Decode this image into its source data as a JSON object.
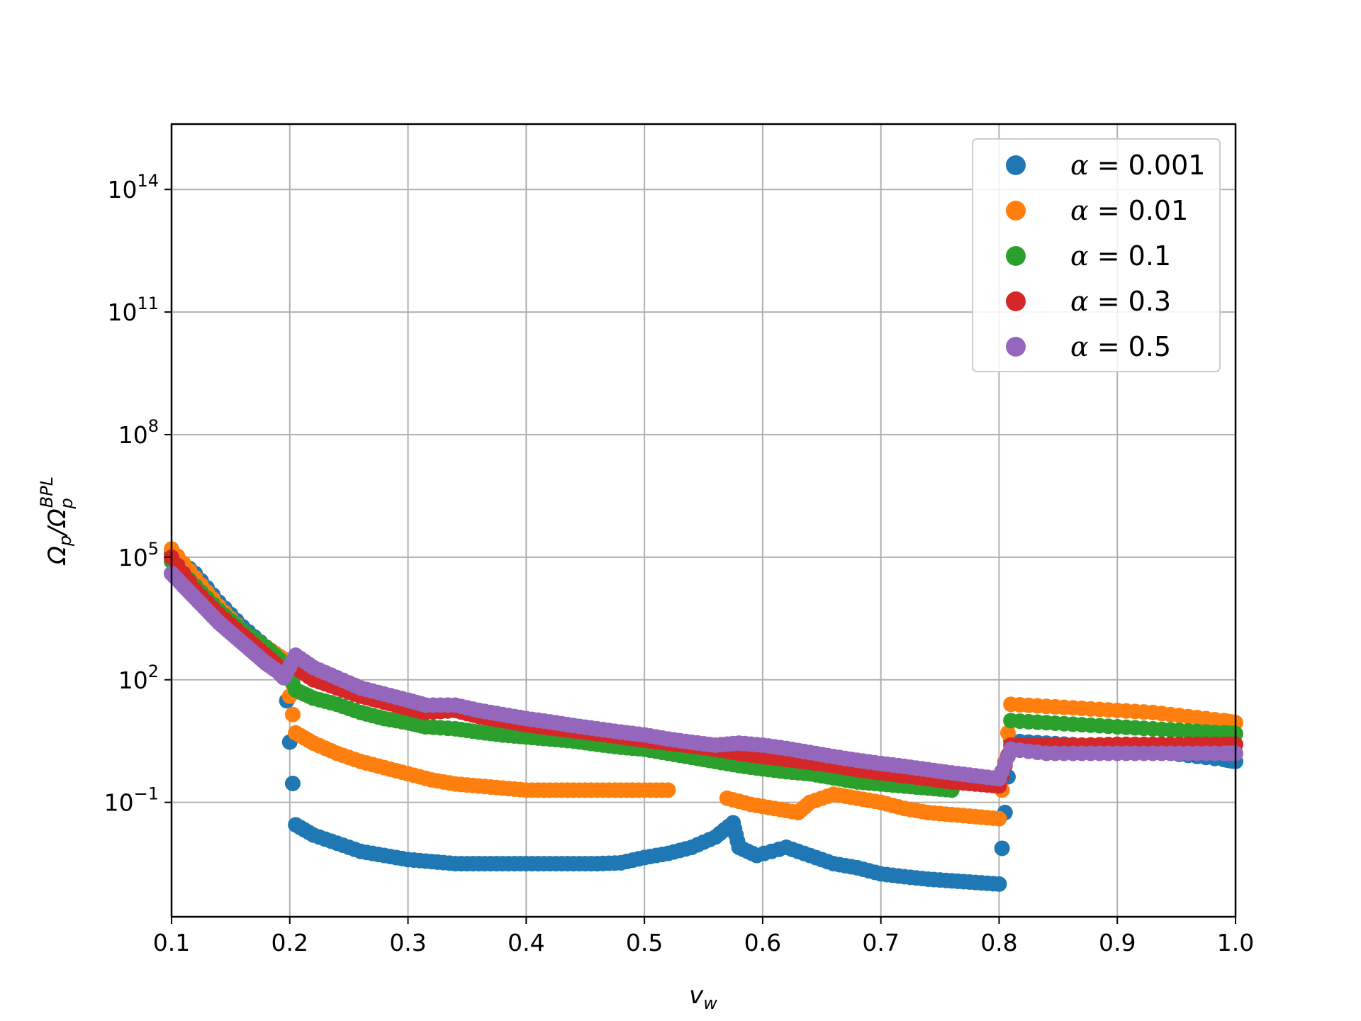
{
  "chart_data": {
    "type": "scatter",
    "xlabel": "v_w",
    "ylabel": "Ω_p/Ω_p^BPL",
    "x_scale": "linear",
    "y_scale": "log",
    "xlim": [
      0.1,
      1.0
    ],
    "ylim_log10": [
      -3.8,
      15.6
    ],
    "x_ticks": [
      {
        "value": 0.1,
        "label": "0.1"
      },
      {
        "value": 0.2,
        "label": "0.2"
      },
      {
        "value": 0.3,
        "label": "0.3"
      },
      {
        "value": 0.4,
        "label": "0.4"
      },
      {
        "value": 0.5,
        "label": "0.5"
      },
      {
        "value": 0.6,
        "label": "0.6"
      },
      {
        "value": 0.7,
        "label": "0.7"
      },
      {
        "value": 0.8,
        "label": "0.8"
      },
      {
        "value": 0.9,
        "label": "0.9"
      },
      {
        "value": 1.0,
        "label": "1.0"
      }
    ],
    "y_ticks": [
      {
        "exp": -1,
        "base": "10",
        "sup": "−1"
      },
      {
        "exp": 2,
        "base": "10",
        "sup": "2"
      },
      {
        "exp": 5,
        "base": "10",
        "sup": "5"
      },
      {
        "exp": 8,
        "base": "10",
        "sup": "8"
      },
      {
        "exp": 11,
        "base": "10",
        "sup": "11"
      },
      {
        "exp": 14,
        "base": "10",
        "sup": "14"
      }
    ],
    "grid": true,
    "legend_position": "top-right",
    "series": [
      {
        "name": "α = 0.001",
        "legend_prefix": "α",
        "legend_value": " = 0.001",
        "color": "#1f77b4",
        "points_log10": [
          [
            0.1,
            5.1
          ],
          [
            0.12,
            4.6
          ],
          [
            0.14,
            3.9
          ],
          [
            0.16,
            3.3
          ],
          [
            0.18,
            2.8
          ],
          [
            0.195,
            2.5
          ],
          [
            0.205,
            -1.55
          ],
          [
            0.22,
            -1.8
          ],
          [
            0.24,
            -2.0
          ],
          [
            0.26,
            -2.2
          ],
          [
            0.28,
            -2.3
          ],
          [
            0.3,
            -2.4
          ],
          [
            0.32,
            -2.45
          ],
          [
            0.34,
            -2.5
          ],
          [
            0.36,
            -2.5
          ],
          [
            0.38,
            -2.5
          ],
          [
            0.4,
            -2.5
          ],
          [
            0.42,
            -2.5
          ],
          [
            0.44,
            -2.5
          ],
          [
            0.46,
            -2.5
          ],
          [
            0.48,
            -2.48
          ],
          [
            0.5,
            -2.35
          ],
          [
            0.52,
            -2.25
          ],
          [
            0.54,
            -2.1
          ],
          [
            0.56,
            -1.85
          ],
          [
            0.575,
            -1.5
          ],
          [
            0.58,
            -2.1
          ],
          [
            0.595,
            -2.3
          ],
          [
            0.62,
            -2.1
          ],
          [
            0.64,
            -2.3
          ],
          [
            0.66,
            -2.5
          ],
          [
            0.68,
            -2.6
          ],
          [
            0.7,
            -2.75
          ],
          [
            0.72,
            -2.82
          ],
          [
            0.74,
            -2.88
          ],
          [
            0.76,
            -2.92
          ],
          [
            0.78,
            -2.96
          ],
          [
            0.8,
            -3.0
          ],
          [
            0.81,
            0.5
          ],
          [
            0.84,
            0.45
          ],
          [
            0.87,
            0.4
          ],
          [
            0.9,
            0.32
          ],
          [
            0.93,
            0.25
          ],
          [
            0.96,
            0.15
          ],
          [
            0.99,
            0.05
          ],
          [
            1.0,
            0.0
          ]
        ]
      },
      {
        "name": "α = 0.01",
        "legend_prefix": "α",
        "legend_value": " = 0.01",
        "color": "#ff7f0e",
        "points_log10": [
          [
            0.1,
            5.2
          ],
          [
            0.12,
            4.5
          ],
          [
            0.14,
            3.8
          ],
          [
            0.16,
            3.2
          ],
          [
            0.18,
            2.8
          ],
          [
            0.195,
            2.5
          ],
          [
            0.205,
            0.7
          ],
          [
            0.22,
            0.45
          ],
          [
            0.24,
            0.2
          ],
          [
            0.26,
            0.0
          ],
          [
            0.28,
            -0.15
          ],
          [
            0.3,
            -0.3
          ],
          [
            0.32,
            -0.45
          ],
          [
            0.34,
            -0.55
          ],
          [
            0.36,
            -0.6
          ],
          [
            0.38,
            -0.65
          ],
          [
            0.4,
            -0.7
          ],
          [
            0.42,
            -0.7
          ],
          [
            0.44,
            -0.7
          ],
          [
            0.46,
            -0.7
          ],
          [
            0.48,
            -0.7
          ],
          [
            0.5,
            -0.7
          ],
          [
            0.52,
            -0.7
          ],
          [
            0.57,
            -0.9
          ],
          [
            0.59,
            -1.05
          ],
          [
            0.61,
            -1.15
          ],
          [
            0.63,
            -1.25
          ],
          [
            0.64,
            -1.0
          ],
          [
            0.66,
            -0.8
          ],
          [
            0.68,
            -0.9
          ],
          [
            0.7,
            -1.0
          ],
          [
            0.72,
            -1.15
          ],
          [
            0.74,
            -1.25
          ],
          [
            0.76,
            -1.3
          ],
          [
            0.78,
            -1.35
          ],
          [
            0.8,
            -1.4
          ],
          [
            0.81,
            1.4
          ],
          [
            0.84,
            1.35
          ],
          [
            0.87,
            1.3
          ],
          [
            0.9,
            1.25
          ],
          [
            0.93,
            1.2
          ],
          [
            0.96,
            1.1
          ],
          [
            0.99,
            1.0
          ],
          [
            1.0,
            0.95
          ]
        ]
      },
      {
        "name": "α = 0.1",
        "legend_prefix": "α",
        "legend_value": " = 0.1",
        "color": "#2ca02c",
        "points_log10": [
          [
            0.1,
            4.9
          ],
          [
            0.12,
            4.3
          ],
          [
            0.14,
            3.7
          ],
          [
            0.16,
            3.2
          ],
          [
            0.18,
            2.8
          ],
          [
            0.195,
            2.4
          ],
          [
            0.205,
            1.75
          ],
          [
            0.22,
            1.55
          ],
          [
            0.24,
            1.4
          ],
          [
            0.26,
            1.2
          ],
          [
            0.28,
            1.05
          ],
          [
            0.3,
            0.95
          ],
          [
            0.315,
            0.85
          ],
          [
            0.34,
            0.8
          ],
          [
            0.36,
            0.72
          ],
          [
            0.38,
            0.65
          ],
          [
            0.4,
            0.6
          ],
          [
            0.42,
            0.55
          ],
          [
            0.44,
            0.5
          ],
          [
            0.46,
            0.42
          ],
          [
            0.48,
            0.35
          ],
          [
            0.5,
            0.3
          ],
          [
            0.52,
            0.2
          ],
          [
            0.54,
            0.1
          ],
          [
            0.56,
            0.0
          ],
          [
            0.58,
            -0.1
          ],
          [
            0.6,
            -0.18
          ],
          [
            0.62,
            -0.25
          ],
          [
            0.64,
            -0.3
          ],
          [
            0.66,
            -0.4
          ],
          [
            0.68,
            -0.5
          ],
          [
            0.7,
            -0.55
          ],
          [
            0.72,
            -0.6
          ],
          [
            0.74,
            -0.65
          ],
          [
            0.76,
            -0.7
          ],
          [
            0.81,
            1.0
          ],
          [
            0.84,
            0.95
          ],
          [
            0.87,
            0.9
          ],
          [
            0.9,
            0.85
          ],
          [
            0.93,
            0.8
          ],
          [
            0.96,
            0.75
          ],
          [
            0.99,
            0.7
          ],
          [
            1.0,
            0.68
          ]
        ]
      },
      {
        "name": "α = 0.3",
        "legend_prefix": "α",
        "legend_value": " = 0.3",
        "color": "#d62728",
        "points_log10": [
          [
            0.1,
            5.0
          ],
          [
            0.12,
            4.2
          ],
          [
            0.14,
            3.6
          ],
          [
            0.16,
            3.1
          ],
          [
            0.18,
            2.6
          ],
          [
            0.195,
            2.2
          ],
          [
            0.205,
            2.3
          ],
          [
            0.22,
            2.0
          ],
          [
            0.24,
            1.8
          ],
          [
            0.26,
            1.6
          ],
          [
            0.28,
            1.45
          ],
          [
            0.3,
            1.3
          ],
          [
            0.315,
            1.2
          ],
          [
            0.34,
            1.25
          ],
          [
            0.36,
            1.1
          ],
          [
            0.38,
            1.0
          ],
          [
            0.4,
            0.9
          ],
          [
            0.42,
            0.82
          ],
          [
            0.44,
            0.75
          ],
          [
            0.46,
            0.68
          ],
          [
            0.48,
            0.6
          ],
          [
            0.5,
            0.52
          ],
          [
            0.52,
            0.45
          ],
          [
            0.54,
            0.38
          ],
          [
            0.56,
            0.3
          ],
          [
            0.58,
            0.2
          ],
          [
            0.6,
            0.12
          ],
          [
            0.62,
            0.05
          ],
          [
            0.64,
            -0.02
          ],
          [
            0.66,
            -0.1
          ],
          [
            0.68,
            -0.2
          ],
          [
            0.7,
            -0.28
          ],
          [
            0.72,
            -0.35
          ],
          [
            0.74,
            -0.42
          ],
          [
            0.76,
            -0.5
          ],
          [
            0.78,
            -0.55
          ],
          [
            0.8,
            -0.6
          ],
          [
            0.81,
            0.4
          ],
          [
            0.84,
            0.4
          ],
          [
            0.87,
            0.4
          ],
          [
            0.9,
            0.42
          ],
          [
            0.93,
            0.42
          ],
          [
            0.96,
            0.42
          ],
          [
            0.99,
            0.42
          ],
          [
            1.0,
            0.42
          ]
        ]
      },
      {
        "name": "α = 0.5",
        "legend_prefix": "α",
        "legend_value": " = 0.5",
        "color": "#9467bd",
        "points_log10": [
          [
            0.1,
            4.6
          ],
          [
            0.11,
            4.3
          ],
          [
            0.12,
            4.0
          ],
          [
            0.13,
            3.7
          ],
          [
            0.14,
            3.4
          ],
          [
            0.15,
            3.15
          ],
          [
            0.16,
            2.9
          ],
          [
            0.17,
            2.65
          ],
          [
            0.18,
            2.4
          ],
          [
            0.19,
            2.2
          ],
          [
            0.195,
            2.05
          ],
          [
            0.205,
            2.6
          ],
          [
            0.22,
            2.3
          ],
          [
            0.24,
            2.05
          ],
          [
            0.26,
            1.8
          ],
          [
            0.28,
            1.65
          ],
          [
            0.3,
            1.5
          ],
          [
            0.315,
            1.38
          ],
          [
            0.34,
            1.38
          ],
          [
            0.36,
            1.25
          ],
          [
            0.38,
            1.15
          ],
          [
            0.4,
            1.05
          ],
          [
            0.42,
            0.97
          ],
          [
            0.44,
            0.88
          ],
          [
            0.46,
            0.8
          ],
          [
            0.48,
            0.72
          ],
          [
            0.5,
            0.65
          ],
          [
            0.52,
            0.55
          ],
          [
            0.54,
            0.47
          ],
          [
            0.56,
            0.4
          ],
          [
            0.58,
            0.45
          ],
          [
            0.6,
            0.4
          ],
          [
            0.62,
            0.32
          ],
          [
            0.64,
            0.22
          ],
          [
            0.66,
            0.12
          ],
          [
            0.68,
            0.03
          ],
          [
            0.7,
            -0.05
          ],
          [
            0.72,
            -0.12
          ],
          [
            0.74,
            -0.2
          ],
          [
            0.76,
            -0.28
          ],
          [
            0.78,
            -0.35
          ],
          [
            0.8,
            -0.42
          ],
          [
            0.81,
            0.3
          ],
          [
            0.84,
            0.2
          ],
          [
            0.87,
            0.2
          ],
          [
            0.9,
            0.2
          ],
          [
            0.93,
            0.2
          ],
          [
            0.96,
            0.2
          ],
          [
            0.99,
            0.2
          ],
          [
            1.0,
            0.2
          ]
        ]
      }
    ]
  }
}
